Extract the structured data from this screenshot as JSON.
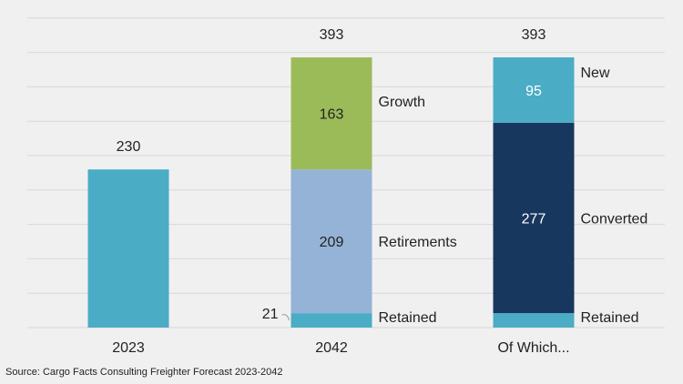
{
  "chart_data": {
    "type": "bar",
    "stacked": true,
    "categories": [
      "2023",
      "2042",
      "Of Which..."
    ],
    "ylim": [
      0,
      450
    ],
    "grid": true,
    "stacks": [
      {
        "category": "2023",
        "total": 230,
        "segments": [
          {
            "value": 230,
            "color": "#4bacc6",
            "label": "",
            "inside_label": ""
          }
        ]
      },
      {
        "category": "2042",
        "total": 393,
        "segments": [
          {
            "value": 21,
            "color": "#4bacc6",
            "label": "Retained",
            "inside_label": "21"
          },
          {
            "value": 209,
            "color": "#95b3d7",
            "label": "Retirements",
            "inside_label": "209"
          },
          {
            "value": 163,
            "color": "#9bbb59",
            "label": "Growth",
            "inside_label": "163"
          }
        ]
      },
      {
        "category": "Of Which...",
        "total": 393,
        "segments": [
          {
            "value": 21,
            "color": "#4bacc6",
            "label": "Retained",
            "inside_label": ""
          },
          {
            "value": 277,
            "color": "#17375e",
            "label": "Converted",
            "inside_label": "277"
          },
          {
            "value": 95,
            "color": "#4bacc6",
            "label": "New",
            "inside_label": "95"
          }
        ]
      }
    ]
  },
  "source": "Source: Cargo Facts Consulting Freighter Forecast 2023-2042"
}
